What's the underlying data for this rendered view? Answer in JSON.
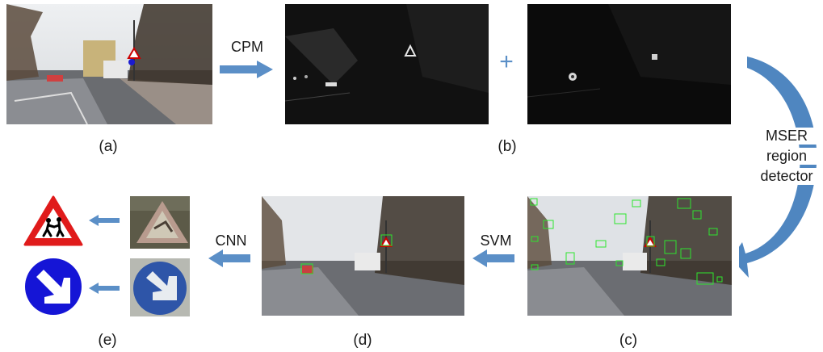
{
  "captions": {
    "a": "(a)",
    "b": "(b)",
    "c": "(c)",
    "d": "(d)",
    "e": "(e)"
  },
  "labels": {
    "cpm": "CPM",
    "plus": "+",
    "mser_line1": "MSER",
    "mser_line2": "region",
    "mser_line3": "detector",
    "svm": "SVM",
    "cnn": "CNN"
  },
  "colors": {
    "arrow": "#5b8fc7",
    "detection_box": "#2ee52e",
    "sign_red": "#e01b1b",
    "sign_blue": "#1515d6"
  },
  "icons": {
    "pedestrian_sign": "children-crossing-warning-sign",
    "direction_sign": "keep-right-mandatory-sign"
  }
}
